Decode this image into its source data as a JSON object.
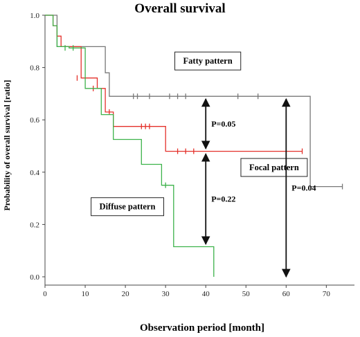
{
  "chart_data": {
    "type": "line",
    "title": "Overall survival",
    "xlabel": "Observation period  [month]",
    "ylabel": "Probability of overall survival [ratio]",
    "xlim": [
      0,
      77
    ],
    "ylim": [
      0,
      1.0
    ],
    "x_ticks": [
      0,
      10,
      20,
      30,
      40,
      50,
      60,
      70
    ],
    "y_ticks": [
      0.0,
      0.2,
      0.4,
      0.6,
      0.8,
      1.0
    ],
    "y_tick_labels": [
      "0.0",
      "0.2",
      "0.4",
      "0.6",
      "0.8",
      "1.0"
    ],
    "grid": false,
    "series": [
      {
        "name": "Fatty pattern",
        "color": "#777777",
        "steps": [
          [
            0,
            1.0
          ],
          [
            3,
            1.0
          ],
          [
            3,
            0.88
          ],
          [
            15,
            0.88
          ],
          [
            15,
            0.78
          ],
          [
            16,
            0.78
          ],
          [
            16,
            0.69
          ],
          [
            66,
            0.69
          ],
          [
            66,
            0.345
          ],
          [
            74,
            0.345
          ]
        ],
        "censored": [
          [
            74,
            0.345
          ],
          [
            22,
            0.69
          ],
          [
            23,
            0.69
          ],
          [
            26,
            0.69
          ],
          [
            31,
            0.69
          ],
          [
            33,
            0.69
          ],
          [
            35,
            0.69
          ],
          [
            48,
            0.69
          ],
          [
            53,
            0.69
          ]
        ]
      },
      {
        "name": "Focal pattern",
        "color": "#e4302a",
        "steps": [
          [
            0,
            1.0
          ],
          [
            2,
            1.0
          ],
          [
            2,
            0.96
          ],
          [
            3,
            0.96
          ],
          [
            3,
            0.92
          ],
          [
            4,
            0.92
          ],
          [
            4,
            0.88
          ],
          [
            9,
            0.88
          ],
          [
            9,
            0.76
          ],
          [
            13,
            0.76
          ],
          [
            13,
            0.72
          ],
          [
            15,
            0.72
          ],
          [
            15,
            0.63
          ],
          [
            17,
            0.63
          ],
          [
            17,
            0.575
          ],
          [
            30,
            0.575
          ],
          [
            30,
            0.48
          ],
          [
            64,
            0.48
          ]
        ],
        "censored": [
          [
            8,
            0.76
          ],
          [
            12,
            0.72
          ],
          [
            16,
            0.63
          ],
          [
            24,
            0.575
          ],
          [
            25,
            0.575
          ],
          [
            26,
            0.575
          ],
          [
            33,
            0.48
          ],
          [
            35,
            0.48
          ],
          [
            37,
            0.48
          ],
          [
            64,
            0.48
          ]
        ]
      },
      {
        "name": "Diffuse pattern",
        "color": "#3cb24a",
        "steps": [
          [
            0,
            1.0
          ],
          [
            2,
            1.0
          ],
          [
            2,
            0.96
          ],
          [
            3,
            0.96
          ],
          [
            3,
            0.88
          ],
          [
            6,
            0.88
          ],
          [
            6,
            0.875
          ],
          [
            10,
            0.875
          ],
          [
            10,
            0.72
          ],
          [
            14,
            0.72
          ],
          [
            14,
            0.62
          ],
          [
            17,
            0.62
          ],
          [
            17,
            0.525
          ],
          [
            24,
            0.525
          ],
          [
            24,
            0.43
          ],
          [
            29,
            0.43
          ],
          [
            29,
            0.35
          ],
          [
            32,
            0.35
          ],
          [
            32,
            0.115
          ],
          [
            42,
            0.115
          ],
          [
            42,
            0.0
          ]
        ],
        "censored": [
          [
            5,
            0.875
          ],
          [
            7,
            0.875
          ],
          [
            30,
            0.35
          ]
        ]
      }
    ],
    "annotations": [
      {
        "type": "box",
        "text": "Fatty pattern",
        "x": 40.5,
        "y": 0.825
      },
      {
        "type": "box",
        "text": "Focal pattern",
        "x": 57,
        "y": 0.418
      },
      {
        "type": "box",
        "text": "Diffuse pattern",
        "x": 20.5,
        "y": 0.268
      },
      {
        "type": "arrow",
        "text": "P=0.05",
        "x": 40,
        "y_from": 0.68,
        "y_to": 0.49
      },
      {
        "type": "arrow",
        "text": "P=0.22",
        "x": 40,
        "y_from": 0.47,
        "y_to": 0.125
      },
      {
        "type": "arrow",
        "text": "P=0.04",
        "x": 60,
        "y_from": 0.68,
        "y_to": 0.0
      }
    ]
  }
}
